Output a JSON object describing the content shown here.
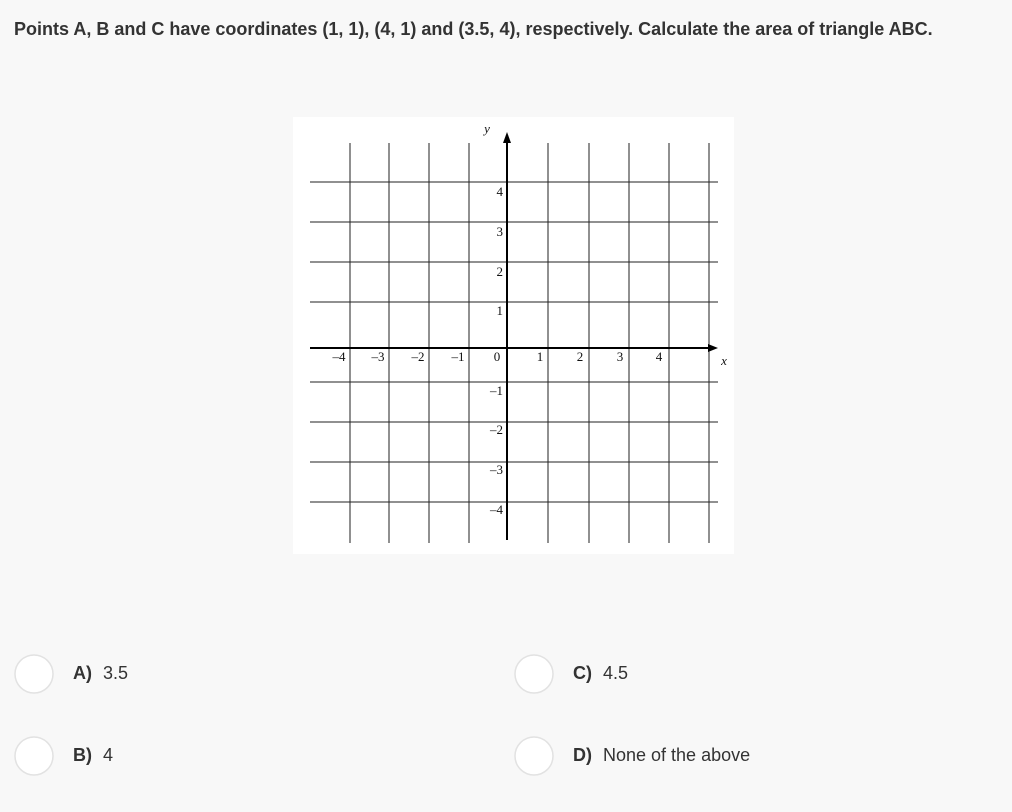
{
  "question": "Points A, B and C have coordinates (1, 1), (4, 1) and (3.5, 4), respectively. Calculate the area of triangle ABC.",
  "figure": {
    "x_label": "x",
    "y_label": "y",
    "origin": "0",
    "x_ticks": [
      "–4",
      "–3",
      "–2",
      "–1",
      "1",
      "2",
      "3",
      "4"
    ],
    "y_ticks": [
      "4",
      "3",
      "2",
      "1",
      "–1",
      "–2",
      "–3",
      "–4"
    ]
  },
  "options": [
    {
      "letter": "A)",
      "text": "3.5"
    },
    {
      "letter": "B)",
      "text": "4"
    },
    {
      "letter": "C)",
      "text": "4.5"
    },
    {
      "letter": "D)",
      "text": "None of the above"
    }
  ]
}
